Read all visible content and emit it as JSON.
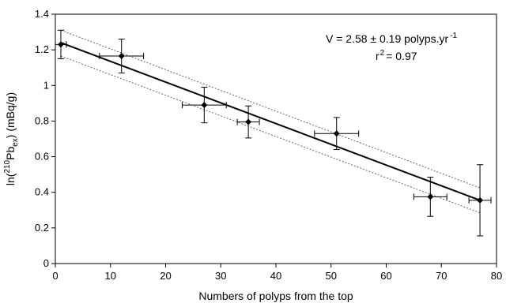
{
  "chart_data": {
    "type": "scatter",
    "title": "",
    "xlabel": "Numbers of polyps from the top",
    "ylabel_parts": {
      "pre": "ln(",
      "sup": "210",
      "mid": "Pb",
      "sub": "ex",
      "post": ") (mBq/g)"
    },
    "xlim": [
      0,
      80
    ],
    "ylim": [
      0,
      1.4
    ],
    "x_ticks": [
      "0",
      "10",
      "20",
      "30",
      "40",
      "50",
      "60",
      "70",
      "80"
    ],
    "y_ticks": [
      "0",
      "0.2",
      "0.4",
      "0.6",
      "0.8",
      "1",
      "1.2",
      "1.4"
    ],
    "grid": false,
    "points": [
      {
        "x": 1,
        "y": 1.23,
        "xerr": 1,
        "yerr": 0.08
      },
      {
        "x": 12,
        "y": 1.165,
        "xerr": 4,
        "yerr": 0.095
      },
      {
        "x": 27,
        "y": 0.89,
        "xerr": 4,
        "yerr": 0.1
      },
      {
        "x": 35,
        "y": 0.795,
        "xerr": 2,
        "yerr": 0.09
      },
      {
        "x": 51,
        "y": 0.73,
        "xerr": 4,
        "yerr": 0.09
      },
      {
        "x": 68,
        "y": 0.375,
        "xerr": 3,
        "yerr": 0.11
      },
      {
        "x": 77,
        "y": 0.355,
        "xerr": 2,
        "yerr": 0.2
      }
    ],
    "fit_line": {
      "x": [
        1,
        77
      ],
      "y": [
        1.24,
        0.355
      ]
    },
    "confidence_upper": {
      "x": [
        1,
        77
      ],
      "y": [
        1.31,
        0.425
      ]
    },
    "confidence_lower": {
      "x": [
        1,
        77
      ],
      "y": [
        1.165,
        0.285
      ]
    },
    "annotations": {
      "velocity_pre": "V = 2.58 ± 0.19 polyps.yr",
      "velocity_sup": "-1",
      "r2_pre": "r",
      "r2_sup": "2",
      "r2_post": "= 0.97"
    },
    "colors": {
      "points": "#000000",
      "fit_line": "#000000",
      "confidence": "#666666"
    }
  }
}
